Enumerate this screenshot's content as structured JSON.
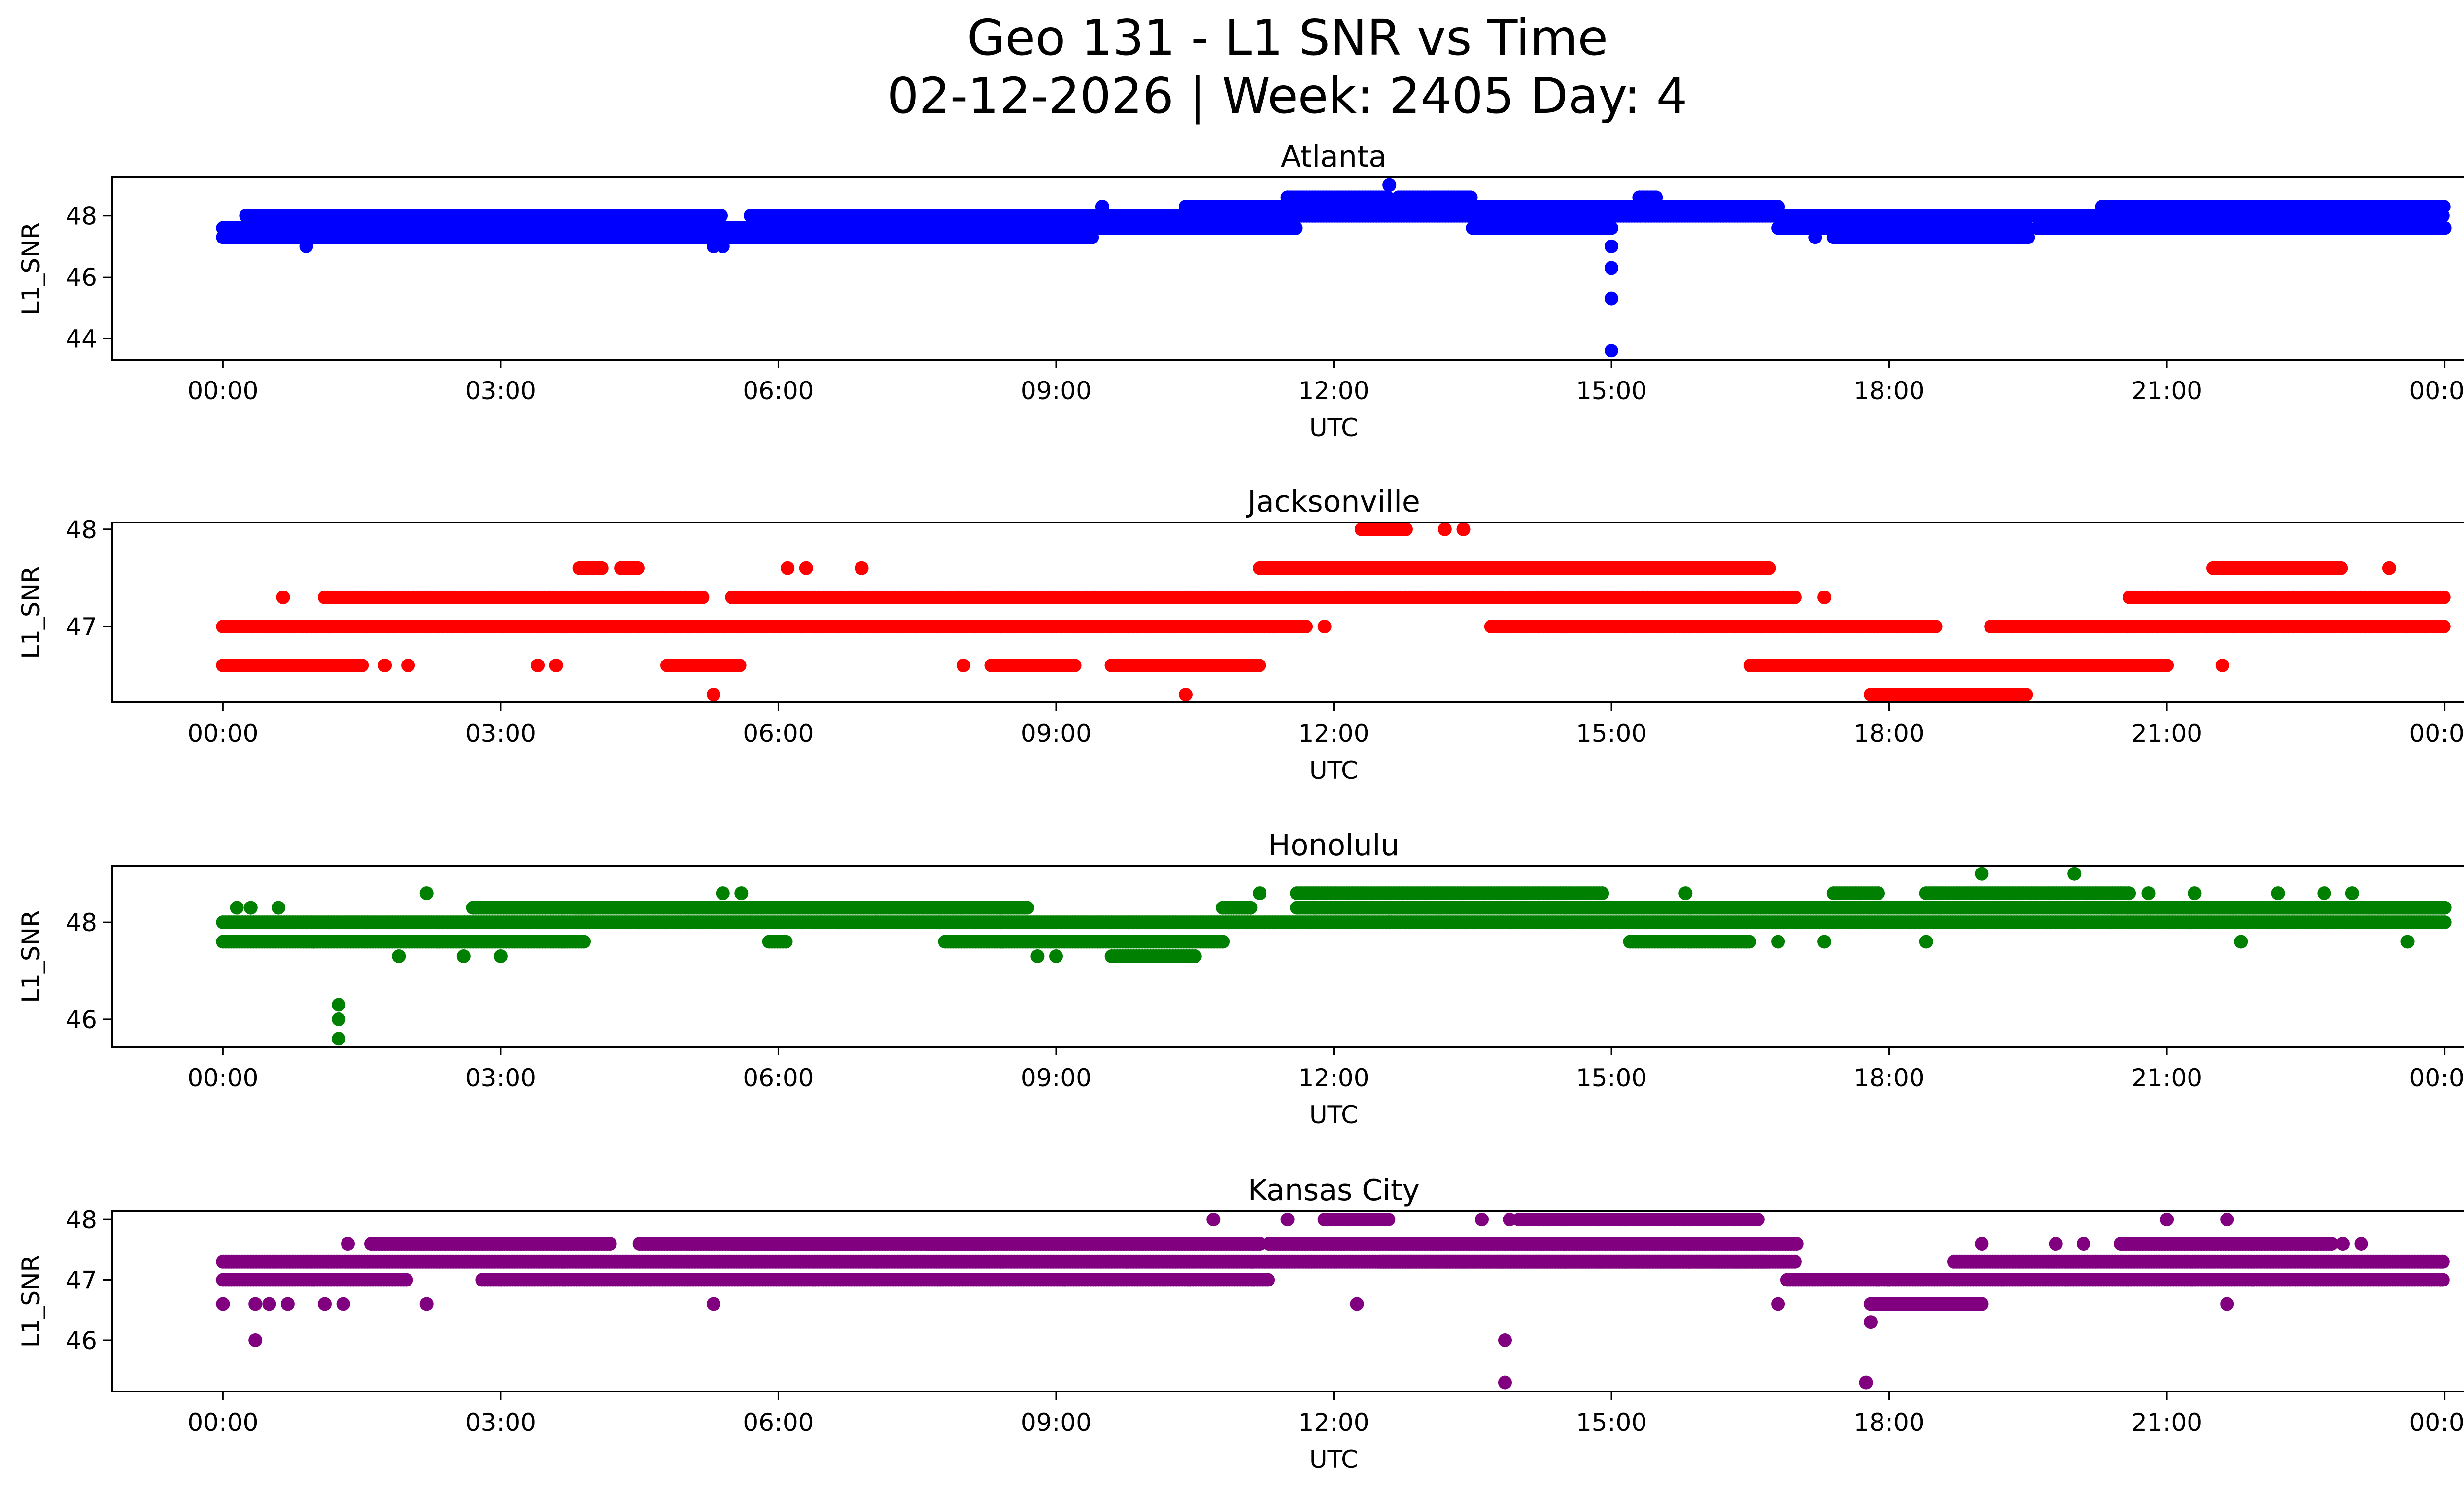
{
  "figure": {
    "title_line1": "Geo 131 - L1 SNR vs Time",
    "title_line2": "02-12-2026 | Week: 2405 Day: 4"
  },
  "chart_data": [
    {
      "type": "scatter",
      "title": "Atlanta",
      "xlabel": "UTC",
      "ylabel": "L1_SNR",
      "color": "#0000ff",
      "x_unit": "hours since 00:00 UTC",
      "xlim": [
        -1.2,
        25.2
      ],
      "ylim": [
        43.3,
        49.25
      ],
      "xticks": [
        0,
        3,
        6,
        9,
        12,
        15,
        18,
        21,
        24
      ],
      "xtick_labels": [
        "00:00",
        "03:00",
        "06:00",
        "09:00",
        "12:00",
        "15:00",
        "18:00",
        "21:00",
        "00:00"
      ],
      "yticks": [
        44,
        46,
        48
      ],
      "ytick_labels": [
        "44",
        "46",
        "48"
      ],
      "bands": [
        [
          0.0,
          9.4,
          47.3
        ],
        [
          0.0,
          9.4,
          47.6
        ],
        [
          0.25,
          5.4,
          48.0
        ],
        [
          5.7,
          9.4,
          48.0
        ],
        [
          9.4,
          24.0,
          48.0
        ],
        [
          9.4,
          11.6,
          47.6
        ],
        [
          10.4,
          11.8,
          48.3
        ],
        [
          11.5,
          12.6,
          48.6
        ],
        [
          11.8,
          15.0,
          48.3
        ],
        [
          12.7,
          13.5,
          48.6
        ],
        [
          13.5,
          15.0,
          47.6
        ],
        [
          15.0,
          16.8,
          48.3
        ],
        [
          15.3,
          15.5,
          48.6
        ],
        [
          16.8,
          17.4,
          47.6
        ],
        [
          17.4,
          19.5,
          47.6
        ],
        [
          17.4,
          19.5,
          47.3
        ],
        [
          19.6,
          24.0,
          47.6
        ],
        [
          20.3,
          24.0,
          48.3
        ],
        [
          23.1,
          24.0,
          47.6
        ]
      ],
      "points": [
        [
          0.9,
          47.0
        ],
        [
          5.3,
          47.0
        ],
        [
          5.4,
          47.0
        ],
        [
          9.5,
          48.3
        ],
        [
          12.6,
          49.0
        ],
        [
          15.0,
          47.0
        ],
        [
          15.0,
          46.3
        ],
        [
          15.0,
          45.3
        ],
        [
          15.0,
          43.6
        ],
        [
          0.4,
          48.0
        ],
        [
          0.7,
          48.0
        ],
        [
          1.0,
          48.0
        ],
        [
          17.2,
          47.3
        ],
        [
          17.7,
          48.0
        ],
        [
          18.2,
          48.0
        ],
        [
          18.7,
          48.0
        ],
        [
          19.0,
          48.0
        ]
      ]
    },
    {
      "type": "scatter",
      "title": "Jacksonville",
      "xlabel": "UTC",
      "ylabel": "L1_SNR",
      "color": "#ff0000",
      "x_unit": "hours since 00:00 UTC",
      "xlim": [
        -1.2,
        25.2
      ],
      "ylim": [
        46.22,
        48.07
      ],
      "xticks": [
        0,
        3,
        6,
        9,
        12,
        15,
        18,
        21,
        24
      ],
      "xtick_labels": [
        "00:00",
        "03:00",
        "06:00",
        "09:00",
        "12:00",
        "15:00",
        "18:00",
        "21:00",
        "00:00"
      ],
      "yticks": [
        47,
        48
      ],
      "ytick_labels": [
        "47",
        "48"
      ],
      "bands": [
        [
          0.0,
          11.7,
          47.0
        ],
        [
          0.0,
          1.5,
          46.6
        ],
        [
          1.1,
          5.2,
          47.3
        ],
        [
          5.5,
          11.7,
          47.3
        ],
        [
          4.8,
          5.6,
          46.6
        ],
        [
          3.85,
          4.1,
          47.6
        ],
        [
          4.3,
          4.5,
          47.6
        ],
        [
          8.3,
          9.2,
          46.6
        ],
        [
          9.6,
          11.2,
          46.6
        ],
        [
          11.2,
          16.7,
          47.6
        ],
        [
          11.7,
          17.0,
          47.3
        ],
        [
          12.3,
          12.8,
          48.0
        ],
        [
          13.7,
          18.5,
          47.0
        ],
        [
          14.6,
          16.7,
          47.6
        ],
        [
          16.5,
          21.0,
          46.6
        ],
        [
          17.8,
          19.5,
          46.3
        ],
        [
          19.1,
          24.0,
          47.0
        ],
        [
          20.6,
          24.0,
          47.3
        ],
        [
          21.5,
          22.9,
          47.6
        ]
      ],
      "points": [
        [
          0.65,
          47.3
        ],
        [
          1.75,
          46.6
        ],
        [
          2.0,
          46.6
        ],
        [
          3.4,
          46.6
        ],
        [
          3.6,
          46.6
        ],
        [
          5.3,
          46.3
        ],
        [
          6.1,
          47.6
        ],
        [
          6.3,
          47.6
        ],
        [
          6.9,
          47.6
        ],
        [
          10.4,
          46.3
        ],
        [
          11.9,
          47.0
        ],
        [
          13.2,
          48.0
        ],
        [
          13.4,
          48.0
        ],
        [
          17.3,
          47.3
        ],
        [
          21.6,
          46.6
        ],
        [
          23.4,
          47.6
        ],
        [
          8.0,
          46.6
        ],
        [
          9.6,
          46.6
        ]
      ]
    },
    {
      "type": "scatter",
      "title": "Honolulu",
      "xlabel": "UTC",
      "ylabel": "L1_SNR",
      "color": "#008000",
      "x_unit": "hours since 00:00 UTC",
      "xlim": [
        -1.2,
        25.2
      ],
      "ylim": [
        45.43,
        49.16
      ],
      "xticks": [
        0,
        3,
        6,
        9,
        12,
        15,
        18,
        21,
        24
      ],
      "xtick_labels": [
        "00:00",
        "03:00",
        "06:00",
        "09:00",
        "12:00",
        "15:00",
        "18:00",
        "21:00",
        "00:00"
      ],
      "yticks": [
        46,
        48
      ],
      "ytick_labels": [
        "46",
        "48"
      ],
      "bands": [
        [
          0.0,
          24.0,
          48.0
        ],
        [
          0.0,
          3.9,
          47.6
        ],
        [
          2.7,
          4.0,
          48.3
        ],
        [
          3.8,
          8.7,
          48.3
        ],
        [
          5.9,
          6.1,
          47.6
        ],
        [
          7.8,
          10.8,
          47.6
        ],
        [
          9.6,
          10.5,
          47.3
        ],
        [
          10.8,
          11.1,
          48.3
        ],
        [
          11.6,
          14.9,
          48.6
        ],
        [
          11.6,
          24.0,
          48.3
        ],
        [
          15.2,
          16.5,
          47.6
        ],
        [
          17.4,
          17.9,
          48.6
        ],
        [
          18.4,
          20.6,
          48.6
        ],
        [
          20.4,
          24.0,
          48.3
        ]
      ],
      "points": [
        [
          1.25,
          46.3
        ],
        [
          1.25,
          46.0
        ],
        [
          1.25,
          45.6
        ],
        [
          0.15,
          48.3
        ],
        [
          0.3,
          48.3
        ],
        [
          0.6,
          48.3
        ],
        [
          1.9,
          47.3
        ],
        [
          2.2,
          48.6
        ],
        [
          2.6,
          47.3
        ],
        [
          3.0,
          47.3
        ],
        [
          5.4,
          48.6
        ],
        [
          5.6,
          48.6
        ],
        [
          8.8,
          47.3
        ],
        [
          9.0,
          47.3
        ],
        [
          11.2,
          48.6
        ],
        [
          12.6,
          48.0
        ],
        [
          15.8,
          48.6
        ],
        [
          16.8,
          47.6
        ],
        [
          17.3,
          47.6
        ],
        [
          18.4,
          47.6
        ],
        [
          19.0,
          49.0
        ],
        [
          20.0,
          49.0
        ],
        [
          21.8,
          47.6
        ],
        [
          22.2,
          48.6
        ],
        [
          22.7,
          48.6
        ],
        [
          23.0,
          48.6
        ],
        [
          23.6,
          47.6
        ],
        [
          20.8,
          48.6
        ],
        [
          21.3,
          48.6
        ]
      ]
    },
    {
      "type": "scatter",
      "title": "Kansas City",
      "xlabel": "UTC",
      "ylabel": "L1_SNR",
      "color": "#800080",
      "x_unit": "hours since 00:00 UTC",
      "xlim": [
        -1.2,
        25.2
      ],
      "ylim": [
        45.15,
        48.14
      ],
      "xticks": [
        0,
        3,
        6,
        9,
        12,
        15,
        18,
        21,
        24
      ],
      "xtick_labels": [
        "00:00",
        "03:00",
        "06:00",
        "09:00",
        "12:00",
        "15:00",
        "18:00",
        "21:00",
        "00:00"
      ],
      "yticks": [
        46,
        47,
        48
      ],
      "ytick_labels": [
        "46",
        "47",
        "48"
      ],
      "bands": [
        [
          0.0,
          17.0,
          47.3
        ],
        [
          0.0,
          2.0,
          47.0
        ],
        [
          1.6,
          4.2,
          47.6
        ],
        [
          2.8,
          11.3,
          47.0
        ],
        [
          4.5,
          6.9,
          47.6
        ],
        [
          5.5,
          8.2,
          47.6
        ],
        [
          7.6,
          11.2,
          47.6
        ],
        [
          11.3,
          17.0,
          47.6
        ],
        [
          11.9,
          12.6,
          48.0
        ],
        [
          14.0,
          16.6,
          48.0
        ],
        [
          12.5,
          16.7,
          47.3
        ],
        [
          16.9,
          24.0,
          47.0
        ],
        [
          17.8,
          19.0,
          46.6
        ],
        [
          18.7,
          24.0,
          47.3
        ],
        [
          20.5,
          22.8,
          47.6
        ]
      ],
      "points": [
        [
          0.0,
          46.6
        ],
        [
          0.35,
          46.0
        ],
        [
          0.35,
          46.6
        ],
        [
          0.5,
          46.6
        ],
        [
          0.7,
          46.6
        ],
        [
          1.1,
          46.6
        ],
        [
          1.3,
          46.6
        ],
        [
          1.35,
          47.6
        ],
        [
          2.2,
          46.6
        ],
        [
          5.3,
          46.6
        ],
        [
          10.7,
          48.0
        ],
        [
          11.5,
          48.0
        ],
        [
          12.25,
          46.6
        ],
        [
          13.6,
          48.0
        ],
        [
          13.9,
          48.0
        ],
        [
          13.85,
          46.0
        ],
        [
          13.85,
          45.3
        ],
        [
          16.8,
          46.6
        ],
        [
          17.8,
          46.3
        ],
        [
          17.75,
          45.3
        ],
        [
          18.0,
          47.0
        ],
        [
          19.0,
          46.6
        ],
        [
          19.0,
          47.6
        ],
        [
          19.8,
          47.6
        ],
        [
          20.1,
          47.6
        ],
        [
          21.0,
          48.0
        ],
        [
          21.65,
          48.0
        ],
        [
          21.65,
          46.6
        ],
        [
          22.9,
          47.6
        ],
        [
          23.1,
          47.6
        ]
      ]
    }
  ]
}
